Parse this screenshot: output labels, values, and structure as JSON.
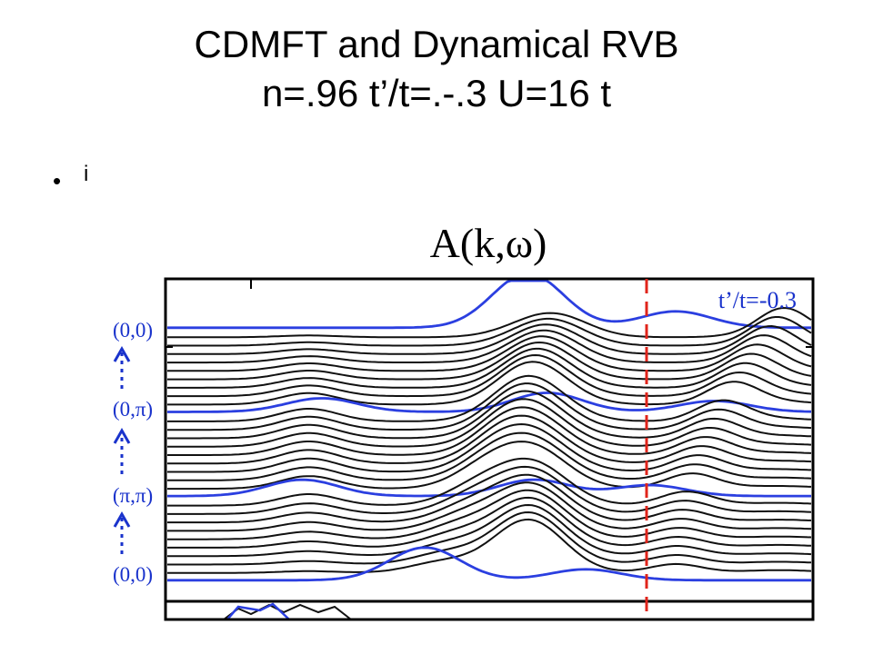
{
  "slide": {
    "title_line1": "CDMFT and Dynamical RVB",
    "title_line2": "n=.96 t’/t=.-.3 U=16 t",
    "bullet_text": "i"
  },
  "colors": {
    "black_curve": "#111111",
    "blue_curve": "#2b3fe0",
    "fermi_line": "#e0241b",
    "label_blue": "#1a33cc",
    "frame": "#000000"
  },
  "chart_data": {
    "type": "line",
    "title": "A(k,ω)",
    "annotation": "t’/t=-0.3",
    "xlabel": "",
    "ylabel": "",
    "k_path_labels": [
      "(0,0)",
      "(0,π)",
      "(π,π)",
      "(0,0)"
    ],
    "k_path_arrows": [
      "up-arrow-icon",
      "up-arrow-icon",
      "up-arrow-icon"
    ],
    "fermi_level_line": "dashed red vertical line",
    "grid": false,
    "legend": "none",
    "series_description": "stacked spectral curves along k-path; blue curves at high-symmetry points",
    "highlight_curves": [
      {
        "k": "(0,0)",
        "peaks": [
          {
            "omega": -2.4,
            "height": 1.0
          },
          {
            "omega": -0.1,
            "height": 0.3
          }
        ]
      },
      {
        "k": "(π,π)",
        "peaks": [
          {
            "omega": -5.6,
            "height": 0.25
          },
          {
            "omega": -2.1,
            "height": 0.35
          },
          {
            "omega": 0.5,
            "height": 0.2
          }
        ]
      },
      {
        "k": "(0,π)",
        "peaks": [
          {
            "omega": -5.9,
            "height": 0.3
          },
          {
            "omega": -2.3,
            "height": 0.3
          },
          {
            "omega": -0.5,
            "height": 0.2
          }
        ]
      },
      {
        "k": "(0,0)",
        "peaks": [
          {
            "omega": -4.0,
            "height": 0.6
          },
          {
            "omega": -1.5,
            "height": 0.2
          }
        ]
      }
    ],
    "x_range": [
      -8,
      2
    ]
  }
}
